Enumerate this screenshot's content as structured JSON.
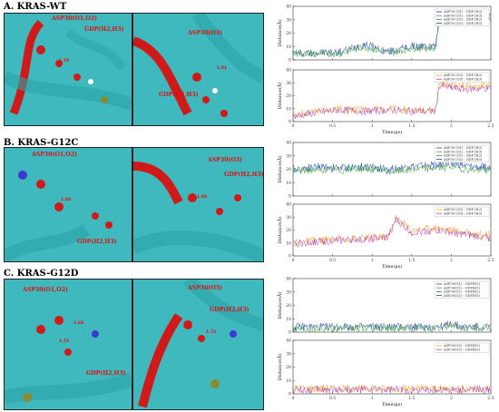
{
  "rows": [
    {
      "title": "A. KRAS-WT",
      "labels": [
        "ASP30(O1,O2)",
        "GDP(H2,H3)",
        "ASP30(O3)",
        "GDP(H2,H3)"
      ],
      "distances": [
        "1.78",
        "1.81"
      ],
      "top_legend": [
        "ASP30 (O1) : GDP (H2)",
        "ASP30 (O1) : GDP (H3)",
        "ASP30 (O2) : GDP (H2)",
        "ASP30 (O2) : GDP (H3)"
      ],
      "bottom_legend": [
        "ASP30 (O3) : GDP (H2)",
        "ASP30 (O3) : GDP (H3)"
      ]
    },
    {
      "title": "B. KRAS-G12C",
      "labels": [
        "ASP30(O1,O2)",
        "GDP(H2,H3)",
        "ASP30(O3)",
        "GDP(H2,H3)"
      ],
      "distances": [
        "1.84",
        "1.98"
      ],
      "top_legend": [
        "ASP30 (O1) : GDP (H2)",
        "ASP30 (O1) : GDP (H3)",
        "ASP30 (O2) : GDP (H2)",
        "ASP30 (O2) : GDP (H3)"
      ],
      "bottom_legend": [
        "ASP30 (O3) : GDP (H2)",
        "ASP30 (O3) : GDP (H3)"
      ]
    },
    {
      "title": "C. KRAS-G12D",
      "labels": [
        "ASP30(O1,O2)",
        "GDP(H2,H3)",
        "ASP30(O3)",
        "GDP(H2,H3)"
      ],
      "distances": [
        "1.68",
        "1.72",
        "1.72"
      ],
      "top_legend": [
        "ASP30(O1) - GDP(H2)",
        "ASP30(O1) - GDP(H3)",
        "ASP30(O2) - GDP(H2)",
        "ASP30(O2) - GDP(H3)"
      ],
      "bottom_legend": [
        "ASP30(O3) - GDP(H2)",
        "ASP30(O3) - GDP(H3)"
      ]
    }
  ],
  "axes": {
    "ylabel": "Distance(Å)",
    "xlabel": "Time(μs)",
    "xticks": [
      "0",
      "0.5",
      "1",
      "1.5",
      "2",
      "2.5"
    ],
    "yticks": [
      "0",
      "10",
      "20",
      "30",
      "40"
    ]
  },
  "colors": {
    "blue": "#2b3fb8",
    "green": "#2a9b2a",
    "gray": "#7a7a7a",
    "orange": "#f5a623",
    "magenta": "#b23fb8",
    "protein": "#3fb9bd",
    "ligand": "#d01a1a"
  },
  "chart_data": [
    {
      "type": "line",
      "xlim": [
        0,
        2.5
      ],
      "ylim": [
        0,
        40
      ],
      "x": [
        0,
        0.3,
        0.6,
        0.9,
        1.2,
        1.5,
        1.8,
        1.85,
        2.0,
        2.2,
        2.5
      ],
      "series": [
        {
          "name": "ASP30 (O1) : GDP (H2)",
          "values": [
            5,
            5,
            6,
            12,
            6,
            10,
            10,
            32,
            31,
            32,
            32
          ]
        },
        {
          "name": "ASP30 (O2) : GDP (H3)",
          "values": [
            5,
            5,
            5,
            10,
            5,
            9,
            9,
            30,
            29,
            30,
            30
          ]
        }
      ]
    },
    {
      "type": "line",
      "xlim": [
        0,
        2.5
      ],
      "ylim": [
        0,
        40
      ],
      "x": [
        0,
        0.3,
        0.6,
        0.9,
        1.2,
        1.5,
        1.8,
        1.85,
        2.0,
        2.2,
        2.5
      ],
      "series": [
        {
          "name": "ASP30 (O3) : GDP (H2)",
          "values": [
            5,
            8,
            10,
            9,
            10,
            9,
            9,
            30,
            28,
            27,
            28
          ]
        },
        {
          "name": "ASP30 (O3) : GDP (H3)",
          "values": [
            4,
            7,
            9,
            8,
            9,
            8,
            8,
            28,
            26,
            25,
            26
          ]
        }
      ]
    },
    {
      "type": "line",
      "xlim": [
        0,
        2.5
      ],
      "ylim": [
        0,
        40
      ],
      "x": [
        0,
        0.3,
        0.6,
        0.9,
        1.2,
        1.5,
        1.8,
        2.0,
        2.2,
        2.5
      ],
      "series": [
        {
          "name": "ASP30 (O1) : GDP (H2)",
          "values": [
            20,
            22,
            21,
            22,
            20,
            22,
            23,
            25,
            22,
            21
          ]
        },
        {
          "name": "ASP30 (O2) : GDP (H3)",
          "values": [
            18,
            20,
            19,
            21,
            18,
            20,
            21,
            22,
            20,
            19
          ]
        }
      ]
    },
    {
      "type": "line",
      "xlim": [
        0,
        2.5
      ],
      "ylim": [
        0,
        40
      ],
      "x": [
        0,
        0.3,
        0.6,
        0.9,
        1.2,
        1.3,
        1.5,
        1.8,
        2.0,
        2.2,
        2.5
      ],
      "series": [
        {
          "name": "ASP30 (O3) : GDP (H2)",
          "values": [
            10,
            12,
            13,
            14,
            15,
            30,
            20,
            22,
            20,
            18,
            16
          ]
        },
        {
          "name": "ASP30 (O3) : GDP (H3)",
          "values": [
            9,
            11,
            12,
            13,
            14,
            28,
            18,
            20,
            18,
            16,
            14
          ]
        }
      ]
    },
    {
      "type": "line",
      "xlim": [
        0,
        2.5
      ],
      "ylim": [
        0,
        40
      ],
      "x": [
        0,
        0.5,
        1.0,
        1.5,
        1.9,
        2.0,
        2.1,
        2.5
      ],
      "series": [
        {
          "name": "ASP30(O1) - GDP(H2)",
          "values": [
            4,
            4,
            4,
            4,
            4,
            7,
            4,
            4
          ]
        },
        {
          "name": "ASP30(O2) - GDP(H3)",
          "values": [
            3,
            3,
            3,
            3,
            3,
            6,
            3,
            3
          ]
        }
      ]
    },
    {
      "type": "line",
      "xlim": [
        0,
        2.5
      ],
      "ylim": [
        0,
        40
      ],
      "x": [
        0,
        0.5,
        1.0,
        1.5,
        2.0,
        2.5
      ],
      "series": [
        {
          "name": "ASP30(O3) - GDP(H2)",
          "values": [
            4,
            4,
            4,
            4,
            4,
            4
          ]
        },
        {
          "name": "ASP30(O3) - GDP(H3)",
          "values": [
            3,
            3,
            3,
            3,
            3,
            3
          ]
        }
      ]
    }
  ]
}
